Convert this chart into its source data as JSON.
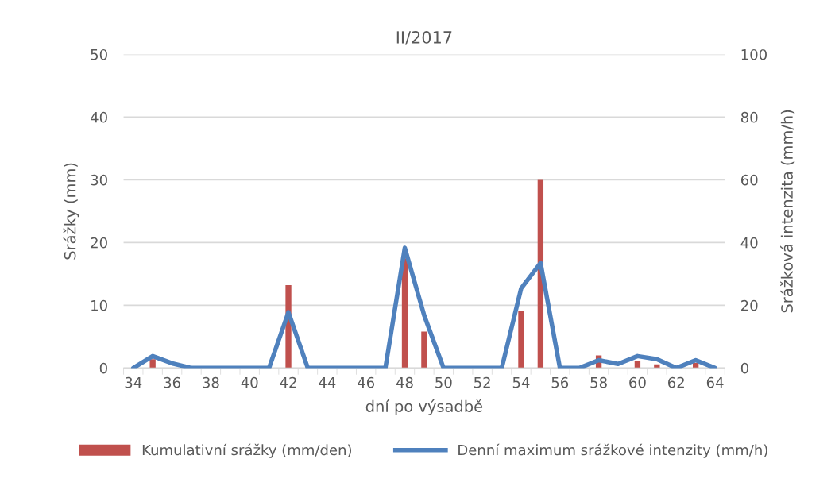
{
  "chart_data": {
    "type": "bar",
    "title": "II/2017",
    "xlabel": "dní po výsadbě",
    "ylabel": "Srážky (mm)",
    "y2label": "Srážková intenzita (mm/h)",
    "categories": [
      "34",
      null,
      "36",
      null,
      "38",
      null,
      "40",
      null,
      "42",
      null,
      "44",
      null,
      "46",
      null,
      "48",
      null,
      "50",
      null,
      "52",
      null,
      "54",
      null,
      "56",
      null,
      "58",
      null,
      "60",
      null,
      "62",
      null,
      "64"
    ],
    "series": [
      {
        "name": "Kumulativní srážky (mm/den)",
        "color": "#c0504d",
        "values": [
          0,
          1.4,
          null,
          0,
          0,
          0,
          0,
          0,
          13.2,
          0,
          0,
          0,
          0,
          0,
          17.5,
          5.8,
          0,
          0,
          0,
          0,
          9.1,
          30,
          0,
          0,
          2.0,
          null,
          1.1,
          0.6,
          0,
          0.8,
          0
        ]
      },
      {
        "name": "Denní maximum srážkové intenzity (mm/h)",
        "type": "line",
        "axis": "y2",
        "color": "#4f81bd",
        "values": [
          0,
          3.8,
          1.5,
          0,
          0,
          0,
          0,
          0,
          17.8,
          0,
          0,
          0,
          0,
          0,
          38.3,
          16.8,
          0,
          0,
          0,
          0,
          25.4,
          33.5,
          0,
          0,
          2.5,
          1.3,
          3.8,
          2.8,
          0,
          2.5,
          0
        ]
      }
    ],
    "ylim": [
      0,
      50
    ],
    "yticks": [
      0,
      10,
      20,
      30,
      40,
      50
    ],
    "y2lim": [
      0,
      100
    ],
    "y2ticks": [
      0,
      20,
      40,
      60,
      80,
      100
    ],
    "grid": "y",
    "legend": "bottom",
    "marker": "none",
    "line_style": "solid"
  }
}
